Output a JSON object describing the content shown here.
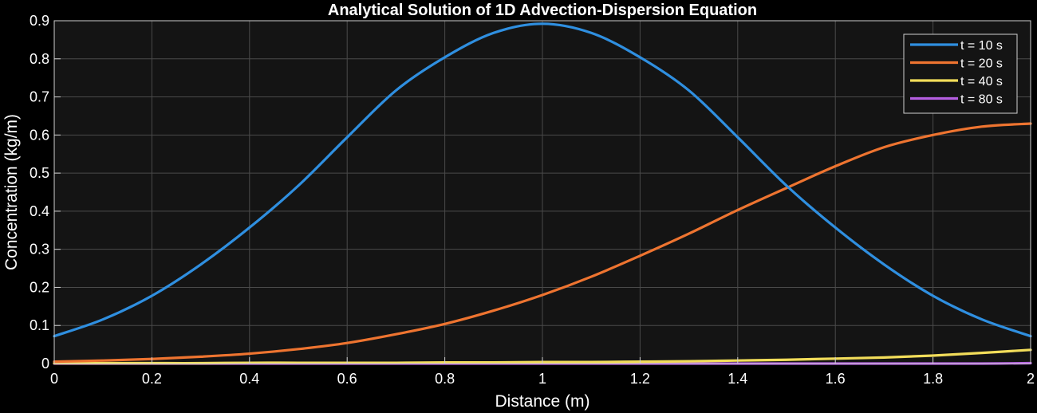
{
  "chart_data": {
    "type": "line",
    "title": "Analytical Solution of 1D Advection-Dispersion Equation",
    "xlabel": "Distance (m)",
    "ylabel": "Concentration (kg/m)",
    "xlim": [
      0,
      2
    ],
    "ylim": [
      0,
      0.9
    ],
    "xticks": [
      "0",
      "0.2",
      "0.4",
      "0.6",
      "0.8",
      "1",
      "1.2",
      "1.4",
      "1.6",
      "1.8",
      "2"
    ],
    "yticks": [
      "0",
      "0.1",
      "0.2",
      "0.3",
      "0.4",
      "0.5",
      "0.6",
      "0.7",
      "0.8",
      "0.9"
    ],
    "grid": true,
    "legend_position": "top-right",
    "background_color": "#141414",
    "grid_color": "#4a4a4a",
    "x": [
      0,
      0.1,
      0.2,
      0.3,
      0.4,
      0.5,
      0.6,
      0.7,
      0.8,
      0.9,
      1.0,
      1.1,
      1.2,
      1.3,
      1.4,
      1.5,
      1.6,
      1.7,
      1.8,
      1.9,
      2.0
    ],
    "series": [
      {
        "name": "t = 10 s",
        "color": "#2f8fe0",
        "values": [
          0.072,
          0.116,
          0.178,
          0.26,
          0.357,
          0.467,
          0.594,
          0.717,
          0.804,
          0.868,
          0.892,
          0.868,
          0.804,
          0.717,
          0.594,
          0.467,
          0.357,
          0.26,
          0.178,
          0.116,
          0.072
        ]
      },
      {
        "name": "t = 20 s",
        "color": "#ee7430",
        "values": [
          0.005,
          0.008,
          0.012,
          0.018,
          0.026,
          0.038,
          0.054,
          0.077,
          0.104,
          0.139,
          0.18,
          0.228,
          0.283,
          0.341,
          0.403,
          0.461,
          0.518,
          0.568,
          0.6,
          0.622,
          0.63
        ]
      },
      {
        "name": "t = 40 s",
        "color": "#f2dd5a",
        "values": [
          0.001,
          0.001,
          0.001,
          0.001,
          0.002,
          0.002,
          0.002,
          0.002,
          0.003,
          0.003,
          0.004,
          0.004,
          0.005,
          0.006,
          0.008,
          0.01,
          0.013,
          0.016,
          0.021,
          0.028,
          0.036
        ]
      },
      {
        "name": "t = 80 s",
        "color": "#b45ee0",
        "values": [
          0.0,
          0.0,
          0.0,
          0.0,
          0.0,
          0.0,
          0.0,
          0.0,
          0.0,
          0.0,
          0.0,
          0.0,
          0.0,
          0.0,
          0.0,
          0.0,
          0.0,
          0.0,
          0.0,
          0.0,
          0.001
        ]
      }
    ]
  }
}
